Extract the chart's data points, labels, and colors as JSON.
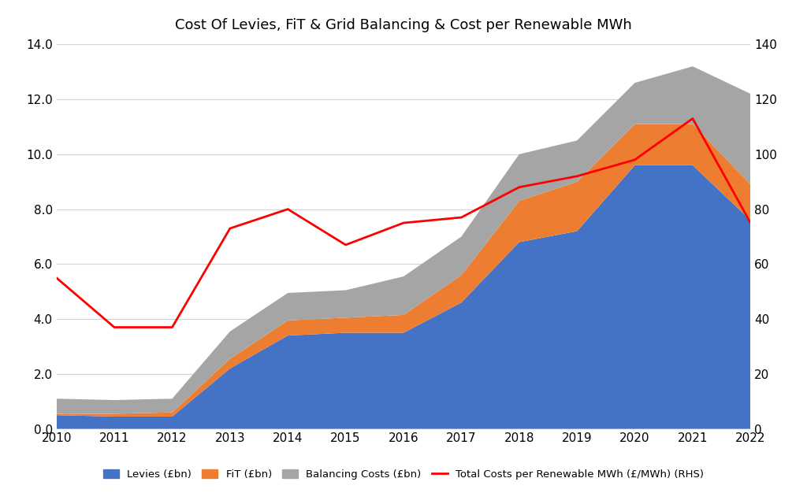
{
  "years": [
    2010,
    2011,
    2012,
    2013,
    2014,
    2015,
    2016,
    2017,
    2018,
    2019,
    2020,
    2021,
    2022
  ],
  "levies": [
    0.5,
    0.45,
    0.45,
    2.2,
    3.4,
    3.5,
    3.5,
    4.6,
    6.8,
    7.2,
    9.6,
    9.6,
    7.6
  ],
  "fit": [
    0.05,
    0.1,
    0.15,
    0.35,
    0.55,
    0.55,
    0.65,
    1.0,
    1.5,
    1.8,
    1.5,
    1.5,
    1.3
  ],
  "balancing": [
    0.55,
    0.5,
    0.5,
    1.0,
    1.0,
    1.0,
    1.4,
    1.4,
    1.7,
    1.5,
    1.5,
    2.1,
    3.3
  ],
  "cost_per_mwh": [
    55,
    37,
    37,
    73,
    80,
    67,
    75,
    77,
    88,
    92,
    98,
    113,
    75
  ],
  "title": "Cost Of Levies, FiT & Grid Balancing & Cost per Renewable MWh",
  "levies_color": "#4472C4",
  "fit_color": "#ED7D31",
  "balancing_color": "#A5A5A5",
  "line_color": "#FF0000",
  "ylim_left": [
    0,
    14
  ],
  "ylim_right": [
    0,
    140
  ],
  "yticks_left": [
    0.0,
    2.0,
    4.0,
    6.0,
    8.0,
    10.0,
    12.0,
    14.0
  ],
  "yticks_right": [
    0,
    20,
    40,
    60,
    80,
    100,
    120,
    140
  ],
  "legend_labels": [
    "Levies (£bn)",
    "FiT (£bn)",
    "Balancing Costs (£bn)",
    "Total Costs per Renewable MWh (£/MWh) (RHS)"
  ],
  "background_color": "#FFFFFF"
}
